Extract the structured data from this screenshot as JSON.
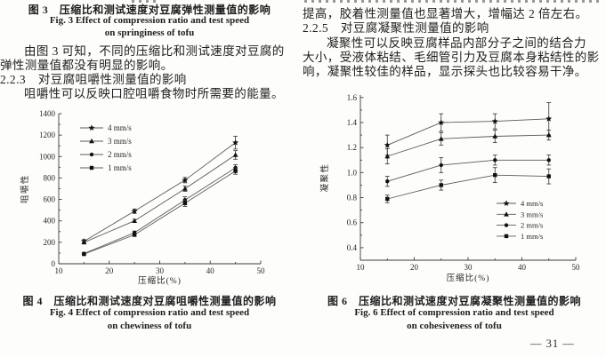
{
  "page": {
    "bg": "#fdfdfb",
    "ink": "#1e1e1e",
    "page_number": "— 31 —"
  },
  "left_column": {
    "fig3_caption_zh": "图 3　压缩比和测试速度对豆腐弹性测量值的影响",
    "fig3_caption_en1": "Fig. 3 Effect of compression ratio and test speed",
    "fig3_caption_en2": "on springiness of tofu",
    "para1_line1": "由图 3 可知，不同的压缩比和测试速度对豆腐的",
    "para1_line2": "弹性测量值都没有明显的影响。",
    "heading_223": "2.2.3　对豆腐咀嚼性测量值的影响",
    "para2_line1": "咀嚼性可以反映口腔咀嚼食物时所需要的能量。",
    "fig4_caption_zh": "图 4　压缩比和测试速度对豆腐咀嚼性测量值的影响",
    "fig4_caption_en1": "Fig. 4 Effect of compression ratio and test speed",
    "fig4_caption_en2": "on chewiness of tofu"
  },
  "right_column": {
    "para1_line1": "提高，胶着性测量值也显著增大，增幅达 2 倍左右。",
    "heading_225": "2.2.5　对豆腐凝聚性测量值的影响",
    "para2_line1": "凝聚性可以反映豆腐样品内部分子之间的结合力",
    "para2_line2": "大小，受液体粘结、毛细管引力及豆腐本身粘结性的影",
    "para2_line3": "响，凝聚性较佳的样品，显示探头也比较容易干净。",
    "fig6_caption_zh": "图 6　压缩比和测试速度对豆腐凝聚性测量值的影响",
    "fig6_caption_en1": "Fig. 6 Effect of compression ratio and test speed",
    "fig6_caption_en2": "on cohesiveness of tofu"
  },
  "chart_data": [
    {
      "id": "fig4",
      "type": "line",
      "title": "图4 压缩比和测试速度对豆腐咀嚼性测量值的影响",
      "xlabel": "压缩比(%)",
      "ylabel": "咀嚼性",
      "xlim": [
        10,
        50
      ],
      "ylim": [
        0,
        1400
      ],
      "xticks": [
        10,
        20,
        30,
        40,
        50
      ],
      "yticks": [
        0,
        200,
        400,
        600,
        800,
        1000,
        1200,
        1400
      ],
      "grid": false,
      "legend_position": "upper-left",
      "x": [
        15,
        25,
        35,
        45
      ],
      "series": [
        {
          "name": "4 mm/s",
          "marker": "star",
          "values": [
            210,
            490,
            780,
            1130
          ],
          "err": [
            15,
            20,
            25,
            60
          ]
        },
        {
          "name": "3 mm/s",
          "marker": "triangle",
          "values": [
            200,
            400,
            700,
            1015
          ],
          "err": [
            15,
            15,
            25,
            40
          ]
        },
        {
          "name": "2 mm/s",
          "marker": "circle",
          "values": [
            95,
            290,
            595,
            895
          ],
          "err": [
            10,
            15,
            30,
            30
          ]
        },
        {
          "name": "1 mm/s",
          "marker": "square",
          "values": [
            90,
            270,
            565,
            865
          ],
          "err": [
            10,
            15,
            30,
            30
          ]
        }
      ],
      "line_color": "#5a5a5a",
      "marker_color": "#111111"
    },
    {
      "id": "fig6",
      "type": "line",
      "title": "图6 压缩比和测试速度对豆腐凝聚性测量值的影响",
      "xlabel": "压缩比(%)",
      "ylabel": "凝聚性",
      "xlim": [
        10,
        50
      ],
      "ylim": [
        0.3,
        1.62
      ],
      "xticks": [
        10,
        20,
        30,
        40,
        50
      ],
      "yticks": [
        0.4,
        0.6,
        0.8,
        1.0,
        1.2,
        1.4,
        1.6
      ],
      "grid": false,
      "legend_position": "lower-right",
      "x": [
        15,
        25,
        35,
        45
      ],
      "series": [
        {
          "name": "4 mm/s",
          "marker": "star",
          "values": [
            1.22,
            1.4,
            1.41,
            1.43
          ],
          "err": [
            0.08,
            0.07,
            0.06,
            0.13
          ]
        },
        {
          "name": "3 mm/s",
          "marker": "triangle",
          "values": [
            1.13,
            1.27,
            1.29,
            1.3
          ],
          "err": [
            0.06,
            0.05,
            0.05,
            0.04
          ]
        },
        {
          "name": "2 mm/s",
          "marker": "circle",
          "values": [
            0.93,
            1.06,
            1.1,
            1.1
          ],
          "err": [
            0.04,
            0.06,
            0.04,
            0.04
          ]
        },
        {
          "name": "1 mm/s",
          "marker": "square",
          "values": [
            0.79,
            0.9,
            0.98,
            0.97
          ],
          "err": [
            0.03,
            0.04,
            0.06,
            0.06
          ]
        }
      ],
      "line_color": "#5a5a5a",
      "marker_color": "#111111"
    }
  ]
}
